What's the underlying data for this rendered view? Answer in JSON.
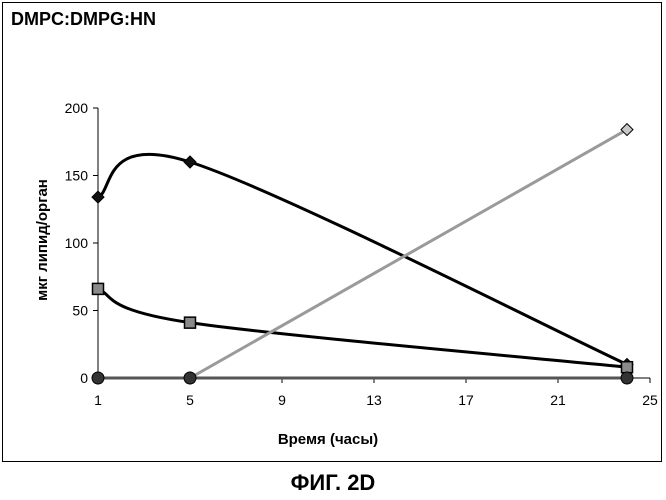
{
  "chart_data": {
    "type": "line",
    "title": "DMPC:DMPG:HN",
    "xlabel": "Время (часы)",
    "ylabel": "мкг липид/орган",
    "xlim": [
      1,
      25
    ],
    "ylim": [
      0,
      200
    ],
    "xticks": [
      1,
      5,
      9,
      13,
      17,
      21,
      25
    ],
    "yticks": [
      0,
      50,
      100,
      150,
      200
    ],
    "grid": false,
    "legend": "none",
    "series": [
      {
        "marker": "diamond",
        "color": "#000000",
        "marker_color": "#111111",
        "smooth": true,
        "points": [
          [
            1,
            134
          ],
          [
            5,
            160
          ],
          [
            24,
            10
          ]
        ]
      },
      {
        "marker": "square",
        "color": "#000000",
        "marker_color": "#8a8a8a",
        "smooth": true,
        "points": [
          [
            1,
            66
          ],
          [
            5,
            41
          ],
          [
            24,
            8
          ]
        ]
      },
      {
        "marker": "diamond",
        "color": "#9a9a9a",
        "marker_color": "#c8c8c8",
        "smooth": false,
        "points": [
          [
            1,
            0
          ],
          [
            5,
            0
          ],
          [
            24,
            184
          ]
        ]
      },
      {
        "marker": "circle",
        "color": "#555555",
        "marker_color": "#333333",
        "smooth": false,
        "points": [
          [
            1,
            0
          ],
          [
            5,
            0
          ],
          [
            24,
            0
          ]
        ]
      }
    ]
  },
  "caption": "ФИГ. 2D"
}
